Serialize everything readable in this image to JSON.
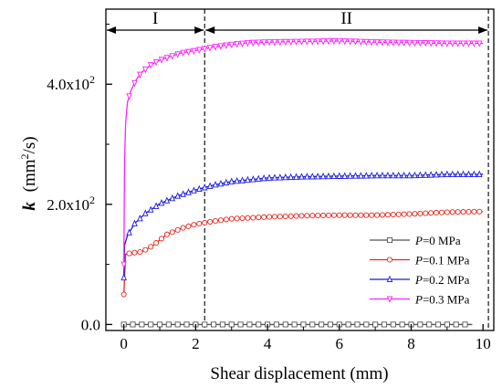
{
  "chart_data": {
    "type": "line",
    "xlabel": "Shear displacement (mm)",
    "ylabel": {
      "main": "k",
      "unit": "(mm",
      "exp": "2",
      "unit_end": "/s)"
    },
    "xlim": [
      -0.5,
      10.3
    ],
    "ylim": [
      -10,
      525
    ],
    "xticks": [
      0,
      2,
      4,
      6,
      8,
      10
    ],
    "yticks": [
      {
        "value": 0,
        "mant": "0.0",
        "exp": ""
      },
      {
        "value": 200,
        "mant": "2.0x10",
        "exp": "2"
      },
      {
        "value": 400,
        "mant": "4.0x10",
        "exp": "2"
      }
    ],
    "regions": [
      {
        "label": "I",
        "from": -0.5,
        "to": 2.25
      },
      {
        "label": "II",
        "from": 2.25,
        "to": 10.15
      }
    ],
    "series": [
      {
        "name": "=0 MPa",
        "prefix": "P",
        "color": "#555555",
        "marker": "square",
        "x": [
          0,
          1,
          2,
          3,
          4,
          5,
          6,
          7,
          8,
          9,
          9.7
        ],
        "y": [
          0,
          0,
          0,
          0,
          0,
          0,
          0,
          0,
          0,
          0,
          0
        ]
      },
      {
        "name": "=0.1 MPa",
        "prefix": "P",
        "color": "#e8281e",
        "marker": "circle",
        "x": [
          0,
          0.05,
          0.2,
          0.5,
          0.8,
          1.2,
          1.6,
          2.0,
          2.5,
          3.0,
          4.0,
          5.0,
          6.0,
          7.0,
          8.0,
          9.0,
          10.0
        ],
        "y": [
          50,
          117,
          119,
          121,
          131,
          150,
          160,
          167,
          172,
          176,
          179,
          181,
          182,
          182,
          184,
          187,
          188
        ]
      },
      {
        "name": "=0.2 MPa",
        "prefix": "P",
        "color": "#1a1ae0",
        "marker": "triangle-up",
        "x": [
          0,
          0.02,
          0.1,
          0.3,
          0.6,
          1.0,
          1.5,
          2.0,
          2.5,
          3.0,
          4.0,
          5.0,
          6.0,
          7.0,
          8.0,
          9.0,
          10.0
        ],
        "y": [
          78,
          132,
          148,
          168,
          185,
          201,
          214,
          224,
          232,
          238,
          244,
          246,
          247,
          248,
          248,
          250,
          250
        ]
      },
      {
        "name": "=0.3 MPa",
        "prefix": "P",
        "color": "#ff20ff",
        "marker": "triangle-down",
        "x": [
          0,
          0.02,
          0.05,
          0.1,
          0.2,
          0.35,
          0.5,
          0.75,
          1.0,
          1.3,
          1.6,
          2.0,
          2.5,
          3.0,
          3.5,
          4.0,
          5.0,
          6.0,
          7.0,
          8.0,
          9.0,
          10.0
        ],
        "y": [
          100,
          270,
          335,
          370,
          390,
          408,
          420,
          432,
          440,
          446,
          452,
          456,
          462,
          466,
          469,
          470,
          471,
          472,
          470,
          469,
          468,
          468
        ]
      }
    ],
    "legend": {
      "position": "bottom-right"
    }
  }
}
